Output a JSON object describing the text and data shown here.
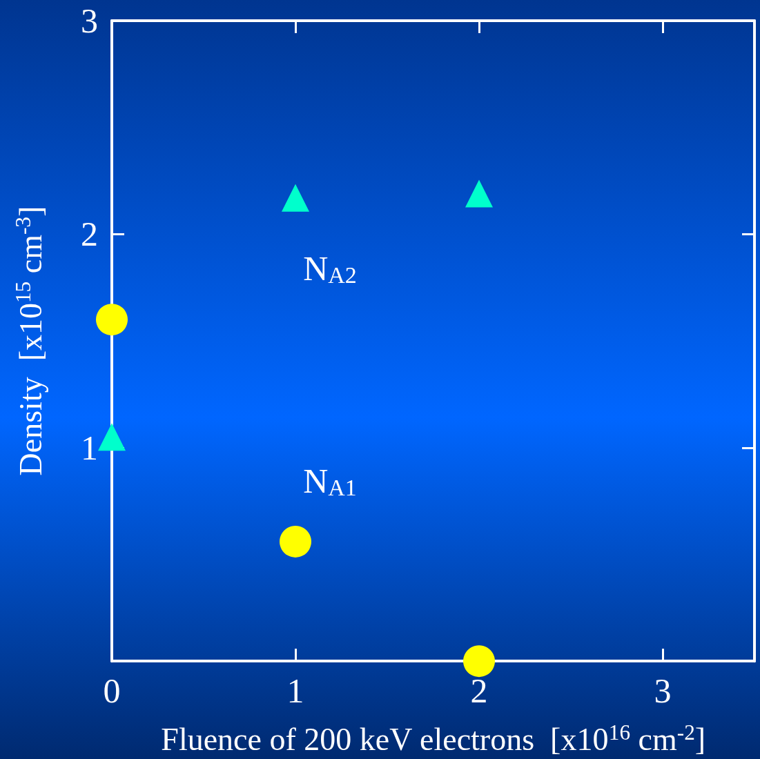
{
  "chart_data": {
    "type": "scatter",
    "xlabel": "Fluence of 200 keV electrons  [x10$^{16}$ cm$^{-2}$]",
    "ylabel": "Density  [x10$^{15}$ cm$^{-3}$]",
    "xlim": [
      0,
      3.5
    ],
    "xticks": [
      0,
      1,
      2,
      3
    ],
    "ylim": [
      0,
      3
    ],
    "yticks": [
      1,
      2,
      3
    ],
    "grid": false,
    "legend": false,
    "series": [
      {
        "name": "N$_{A1}$",
        "color": "#ffff00",
        "marker": "circle",
        "x": [
          0,
          1,
          2
        ],
        "values": [
          1.6,
          0.56,
          0.0
        ]
      },
      {
        "name": "N$_{A2}$",
        "color": "#00ffcc",
        "marker": "triangle",
        "x": [
          0,
          1,
          2
        ],
        "values": [
          1.05,
          2.17,
          2.19
        ]
      }
    ]
  }
}
